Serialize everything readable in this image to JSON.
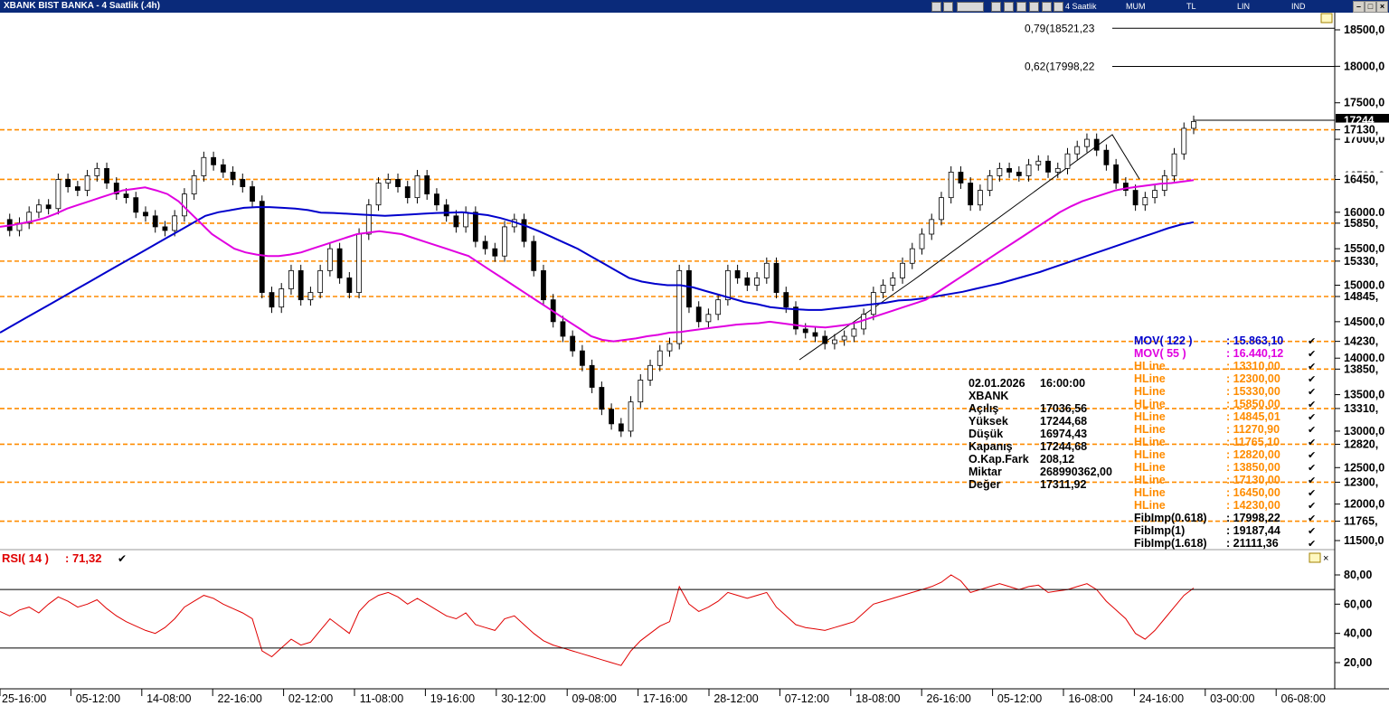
{
  "window": {
    "title": "XBANK BIST BANKA - 4 Saatlik (.4h)",
    "toolbar_items": [
      "4 Saatlik",
      "MUM",
      "TL",
      "LIN",
      "IND"
    ]
  },
  "colors": {
    "mov122": "#0000cc",
    "mov55": "#e000e0",
    "hline": "#ff8c00",
    "rsi": "#e00000",
    "candle": "#000000",
    "titlebar": "#0a2a7a"
  },
  "chart_data": {
    "type": "candlestick",
    "symbol": "XBANK",
    "timeframe": "4 Saatlik",
    "ylim": [
      11300,
      18900
    ],
    "y_ticks": [
      "18500,0",
      "18000,0",
      "17500,0",
      "17000,0",
      "16500,0",
      "16000,0",
      "15500,0",
      "15000,0",
      "14500,0",
      "14000,0",
      "13500,0",
      "13000,0",
      "12500,0",
      "12000,0",
      "11500,0"
    ],
    "y_tick_values": [
      18500,
      18000,
      17500,
      17000,
      16500,
      16000,
      15500,
      15000,
      14500,
      14000,
      13500,
      13000,
      12500,
      12000,
      11500
    ],
    "x_tick_labels": [
      "25-16:00",
      "05-12:00",
      "14-08:00",
      "22-16:00",
      "02-12:00",
      "11-08:00",
      "19-16:00",
      "30-12:00",
      "09-08:00",
      "17-16:00",
      "28-12:00",
      "07-12:00",
      "18-08:00",
      "26-16:00",
      "05-12:00",
      "16-08:00",
      "24-16:00",
      "03-00:00",
      "06-08:00"
    ],
    "hlines": [
      17130,
      16450,
      15850,
      15330,
      14845,
      14230,
      13850,
      13310,
      12820,
      12300,
      11765
    ],
    "hline_labels": [
      "17130,",
      "16450,",
      "15850,",
      "15330,",
      "14845,",
      "14230,",
      "13850,",
      "13310,",
      "12820,",
      "12300,",
      "11765,"
    ],
    "fib_lines": [
      {
        "label": "0,79(18521,23",
        "value": 18521.23
      },
      {
        "label": "0,62(17998,22",
        "value": 17998.22
      }
    ],
    "last_price_label": "17244",
    "close_series": [
      15900,
      15750,
      15850,
      16000,
      16100,
      16050,
      16450,
      16350,
      16300,
      16500,
      16600,
      16400,
      16250,
      16200,
      16000,
      15950,
      15800,
      15750,
      15950,
      16250,
      16500,
      16750,
      16650,
      16550,
      16450,
      16350,
      16150,
      14900,
      14700,
      14950,
      15200,
      14800,
      14900,
      15200,
      15500,
      15100,
      14900,
      15700,
      16100,
      16400,
      16450,
      16350,
      16200,
      16500,
      16250,
      16100,
      15950,
      15800,
      16000,
      15600,
      15500,
      15400,
      15800,
      15900,
      15600,
      15200,
      14800,
      14500,
      14300,
      14100,
      13900,
      13600,
      13300,
      13100,
      13000,
      13400,
      13700,
      13900,
      14100,
      14200,
      15200,
      14700,
      14500,
      14600,
      14800,
      15200,
      15100,
      15000,
      15100,
      15300,
      14900,
      14700,
      14400,
      14350,
      14300,
      14200,
      14250,
      14300,
      14400,
      14600,
      14900,
      15000,
      15100,
      15300,
      15500,
      15700,
      15900,
      16200,
      16550,
      16400,
      16100,
      16300,
      16500,
      16600,
      16550,
      16500,
      16650,
      16700,
      16550,
      16600,
      16800,
      16900,
      17000,
      16850,
      16650,
      16400,
      16300,
      16100,
      16200,
      16300,
      16500,
      16800,
      17150,
      17244
    ],
    "mov122_series": [
      14350,
      14450,
      14550,
      14650,
      14750,
      14850,
      14950,
      15050,
      15150,
      15250,
      15350,
      15450,
      15550,
      15650,
      15750,
      15850,
      15950,
      16000,
      16030,
      16060,
      16070,
      16070,
      16060,
      16050,
      16030,
      15995,
      15990,
      15980,
      15970,
      15960,
      15950,
      15960,
      15970,
      15980,
      15990,
      15995,
      16000,
      15980,
      15960,
      15920,
      15870,
      15810,
      15740,
      15660,
      15580,
      15500,
      15400,
      15300,
      15200,
      15100,
      15050,
      15020,
      15000,
      15000,
      14970,
      14920,
      14870,
      14820,
      14770,
      14740,
      14700,
      14680,
      14670,
      14660,
      14660,
      14680,
      14700,
      14720,
      14740,
      14760,
      14790,
      14800,
      14820,
      14850,
      14880,
      14910,
      14950,
      14990,
      15030,
      15080,
      15130,
      15180,
      15240,
      15300,
      15360,
      15420,
      15480,
      15540,
      15600,
      15660,
      15720,
      15780,
      15830,
      15863
    ],
    "mov55_series": [
      15800,
      15820,
      15850,
      15880,
      15920,
      15980,
      16050,
      16100,
      16150,
      16200,
      16250,
      16300,
      16320,
      16340,
      16300,
      16250,
      16150,
      16000,
      15850,
      15700,
      15600,
      15500,
      15450,
      15420,
      15400,
      15400,
      15420,
      15450,
      15500,
      15550,
      15600,
      15650,
      15700,
      15720,
      15740,
      15720,
      15700,
      15650,
      15600,
      15550,
      15500,
      15450,
      15400,
      15300,
      15200,
      15100,
      15000,
      14900,
      14800,
      14700,
      14600,
      14500,
      14400,
      14300,
      14250,
      14230,
      14250,
      14270,
      14300,
      14320,
      14350,
      14360,
      14380,
      14400,
      14420,
      14440,
      14460,
      14470,
      14480,
      14500,
      14480,
      14460,
      14440,
      14430,
      14420,
      14440,
      14460,
      14500,
      14550,
      14600,
      14650,
      14700,
      14750,
      14800,
      14900,
      15000,
      15100,
      15200,
      15300,
      15400,
      15500,
      15600,
      15700,
      15800,
      15900,
      16000,
      16080,
      16150,
      16200,
      16250,
      16300,
      16330,
      16350,
      16370,
      16390,
      16400,
      16420,
      16440
    ],
    "info": {
      "date": "02.01.2026",
      "time": "16:00:00",
      "symbol": "XBANK",
      "rows": [
        {
          "label": "Açılış",
          "value": "17036,56"
        },
        {
          "label": "Yüksek",
          "value": "17244,68"
        },
        {
          "label": "Düşük",
          "value": "16974,43"
        },
        {
          "label": "Kapanış",
          "value": "17244,68"
        },
        {
          "label": "O.Kap.Fark",
          "value": "208,12"
        },
        {
          "label": "Miktar",
          "value": "268990362,00"
        },
        {
          "label": "Değer",
          "value": "17311,92"
        }
      ]
    },
    "legend": [
      {
        "name": "MOV( 122 )",
        "value": ": 15.863,10",
        "color": "#0000cc"
      },
      {
        "name": "MOV( 55 )",
        "value": ": 16.440,12",
        "color": "#e000e0"
      },
      {
        "name": "HLine",
        "value": ": 13310,00",
        "color": "#ff8c00"
      },
      {
        "name": "HLine",
        "value": ": 12300,00",
        "color": "#ff8c00"
      },
      {
        "name": "HLine",
        "value": ": 15330,00",
        "color": "#ff8c00"
      },
      {
        "name": "HLine",
        "value": ": 15850,00",
        "color": "#ff8c00"
      },
      {
        "name": "HLine",
        "value": ": 14845,01",
        "color": "#ff8c00"
      },
      {
        "name": "HLine",
        "value": ": 11270,90",
        "color": "#ff8c00"
      },
      {
        "name": "HLine",
        "value": ": 11765,10",
        "color": "#ff8c00"
      },
      {
        "name": "HLine",
        "value": ": 12820,00",
        "color": "#ff8c00"
      },
      {
        "name": "HLine",
        "value": ": 13850,00",
        "color": "#ff8c00"
      },
      {
        "name": "HLine",
        "value": ": 17130,00",
        "color": "#ff8c00"
      },
      {
        "name": "HLine",
        "value": ": 16450,00",
        "color": "#ff8c00"
      },
      {
        "name": "HLine",
        "value": ": 14230,00",
        "color": "#ff8c00"
      },
      {
        "name": "FibImp(0.618)",
        "value": ": 17998,22",
        "color": "#000000"
      },
      {
        "name": "FibImp(1)",
        "value": ": 19187,44",
        "color": "#000000"
      },
      {
        "name": "FibImp(1.618)",
        "value": ": 21111,36",
        "color": "#000000"
      }
    ],
    "rsi": {
      "label": "RSI( 14 )",
      "value": ": 71,32",
      "ylim": [
        5,
        92
      ],
      "levels": [
        70,
        30
      ],
      "y_ticks": [
        "80,00",
        "60,00",
        "40,00",
        "20,00"
      ],
      "y_tick_values": [
        80,
        60,
        40,
        20
      ],
      "series": [
        55,
        52,
        56,
        58,
        54,
        60,
        65,
        62,
        58,
        60,
        63,
        57,
        52,
        48,
        45,
        42,
        40,
        44,
        50,
        58,
        62,
        66,
        64,
        60,
        57,
        54,
        50,
        28,
        24,
        30,
        36,
        32,
        34,
        42,
        50,
        45,
        40,
        55,
        62,
        66,
        68,
        65,
        60,
        64,
        60,
        56,
        52,
        50,
        54,
        46,
        44,
        42,
        50,
        52,
        46,
        40,
        35,
        32,
        30,
        28,
        26,
        24,
        22,
        20,
        18,
        28,
        35,
        40,
        45,
        48,
        72,
        60,
        55,
        58,
        62,
        68,
        66,
        64,
        66,
        68,
        58,
        52,
        46,
        44,
        43,
        42,
        44,
        46,
        48,
        54,
        60,
        62,
        64,
        66,
        68,
        70,
        72,
        75,
        80,
        76,
        68,
        70,
        72,
        74,
        72,
        70,
        72,
        73,
        68,
        69,
        70,
        72,
        74,
        70,
        62,
        56,
        50,
        40,
        36,
        42,
        50,
        58,
        66,
        71
      ]
    }
  }
}
